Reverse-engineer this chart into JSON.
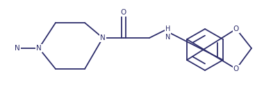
{
  "line_color": "#2d2d6b",
  "bg_color": "#ffffff",
  "figsize": [
    3.8,
    1.32
  ],
  "dpi": 100,
  "lw": 1.3,
  "font_size": 7.5,
  "xlim": [
    0,
    380
  ],
  "ylim": [
    0,
    132
  ]
}
